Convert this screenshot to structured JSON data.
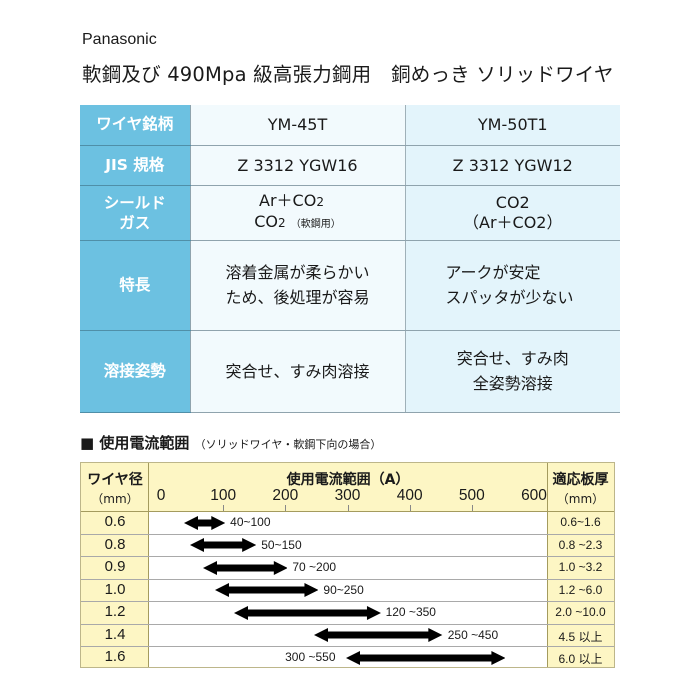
{
  "brand": "Panasonic",
  "title": "軟鋼及び 490Mpa 級高張力鋼用　銅めっき ソリッドワイヤ",
  "spec_table": {
    "rows": [
      {
        "label": "ワイヤ銘柄",
        "c1": [
          "YM-45T"
        ],
        "c2": [
          "YM-50T1"
        ]
      },
      {
        "label": "JIS 規格",
        "c1": [
          "Z 3312 YGW16"
        ],
        "c2": [
          "Z 3312 YGW12"
        ]
      },
      {
        "label": [
          "シールド",
          "ガス"
        ],
        "c1": [
          "Ar＋CO2",
          "CO2 （軟鋼用）"
        ],
        "c2": [
          "CO2",
          "（Ar＋CO2）"
        ]
      },
      {
        "label": "特長",
        "c1": [
          "溶着金属が柔らかい",
          "ため、後処理が容易"
        ],
        "c2": [
          "アークが安定",
          "スパッタが少ない"
        ]
      },
      {
        "label": "溶接姿勢",
        "c1": [
          "突合せ、すみ肉溶接"
        ],
        "c2": [
          "突合せ、すみ肉",
          "全姿勢溶接"
        ]
      }
    ],
    "colors": {
      "label_bg": "#6cc1e1",
      "col1_bg": "#f2fafd",
      "col2_bg": "#e3f4fb"
    }
  },
  "section": {
    "marker": "■",
    "heading": "使用電流範囲",
    "note": "（ソリッドワイヤ・軟鋼下向の場合）"
  },
  "chart_data": {
    "type": "range-bar",
    "title": "使用電流範囲（A）",
    "xlabel": "使用電流範囲（A）",
    "ylabel": "ワイヤ径（mm）",
    "left_header": [
      "ワイヤ径",
      "（mm）"
    ],
    "right_header": [
      "適応板厚",
      "（mm）"
    ],
    "x_ticks": [
      0,
      100,
      200,
      300,
      400,
      500,
      600
    ],
    "xlim": [
      0,
      600
    ],
    "grid": false,
    "header_bg": "#fdf6c4",
    "series": [
      {
        "diameter": "0.6",
        "min": 40,
        "max": 100,
        "label": "40~100",
        "thickness": "0.6~1.6"
      },
      {
        "diameter": "0.8",
        "min": 50,
        "max": 150,
        "label": "50~150",
        "thickness": "0.8 ~2.3"
      },
      {
        "diameter": "0.9",
        "min": 70,
        "max": 200,
        "label": "70 ~200",
        "thickness": "1.0 ~3.2"
      },
      {
        "diameter": "1.0",
        "min": 90,
        "max": 250,
        "label": "90~250",
        "thickness": "1.2 ~6.0"
      },
      {
        "diameter": "1.2",
        "min": 120,
        "max": 350,
        "label": "120 ~350",
        "thickness": "2.0 ~10.0"
      },
      {
        "diameter": "1.4",
        "min": 250,
        "max": 450,
        "label": "250 ~450",
        "thickness": "4.5 以上"
      },
      {
        "diameter": "1.6",
        "min": 300,
        "max": 550,
        "label": "300 ~550",
        "thickness": "6.0 以上"
      }
    ]
  }
}
